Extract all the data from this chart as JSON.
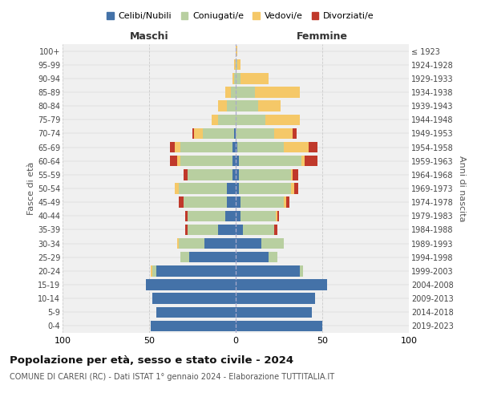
{
  "age_groups": [
    "0-4",
    "5-9",
    "10-14",
    "15-19",
    "20-24",
    "25-29",
    "30-34",
    "35-39",
    "40-44",
    "45-49",
    "50-54",
    "55-59",
    "60-64",
    "65-69",
    "70-74",
    "75-79",
    "80-84",
    "85-89",
    "90-94",
    "95-99",
    "100+"
  ],
  "birth_years": [
    "2019-2023",
    "2014-2018",
    "2009-2013",
    "2004-2008",
    "1999-2003",
    "1994-1998",
    "1989-1993",
    "1984-1988",
    "1979-1983",
    "1974-1978",
    "1969-1973",
    "1964-1968",
    "1959-1963",
    "1954-1958",
    "1949-1953",
    "1944-1948",
    "1939-1943",
    "1934-1938",
    "1929-1933",
    "1924-1928",
    "≤ 1923"
  ],
  "male": {
    "celibi": [
      49,
      46,
      48,
      52,
      46,
      27,
      18,
      10,
      6,
      5,
      5,
      2,
      2,
      2,
      1,
      0,
      0,
      0,
      0,
      0,
      0
    ],
    "coniugati": [
      0,
      0,
      0,
      0,
      2,
      5,
      15,
      18,
      22,
      25,
      28,
      26,
      30,
      30,
      18,
      10,
      5,
      3,
      1,
      0,
      0
    ],
    "vedovi": [
      0,
      0,
      0,
      0,
      1,
      0,
      1,
      0,
      0,
      0,
      2,
      0,
      2,
      3,
      5,
      4,
      5,
      3,
      1,
      1,
      0
    ],
    "divorziati": [
      0,
      0,
      0,
      0,
      0,
      0,
      0,
      1,
      1,
      3,
      0,
      2,
      4,
      3,
      1,
      0,
      0,
      0,
      0,
      0,
      0
    ]
  },
  "female": {
    "nubili": [
      50,
      44,
      46,
      53,
      37,
      19,
      15,
      4,
      3,
      3,
      2,
      2,
      2,
      1,
      0,
      0,
      0,
      0,
      0,
      0,
      0
    ],
    "coniugate": [
      0,
      0,
      0,
      0,
      2,
      5,
      13,
      18,
      20,
      25,
      30,
      30,
      36,
      27,
      22,
      17,
      13,
      11,
      3,
      1,
      0
    ],
    "vedove": [
      0,
      0,
      0,
      0,
      0,
      0,
      0,
      0,
      1,
      1,
      2,
      1,
      2,
      14,
      11,
      20,
      13,
      26,
      16,
      2,
      1
    ],
    "divorziate": [
      0,
      0,
      0,
      0,
      0,
      0,
      0,
      2,
      1,
      2,
      2,
      3,
      7,
      5,
      2,
      0,
      0,
      0,
      0,
      0,
      0
    ]
  },
  "colors": {
    "celibi_nubili": "#4472a8",
    "coniugati": "#b8cfa0",
    "vedovi": "#f5c868",
    "divorziati": "#c0392b"
  },
  "title": "Popolazione per età, sesso e stato civile - 2024",
  "subtitle": "COMUNE DI CARERI (RC) - Dati ISTAT 1° gennaio 2024 - Elaborazione TUTTITALIA.IT",
  "xlabel_left": "Maschi",
  "xlabel_right": "Femmine",
  "ylabel_left": "Fasce di età",
  "ylabel_right": "Anni di nascita",
  "xlim": 100,
  "bg_color": "#f0f0f0",
  "grid_color": "#cccccc"
}
